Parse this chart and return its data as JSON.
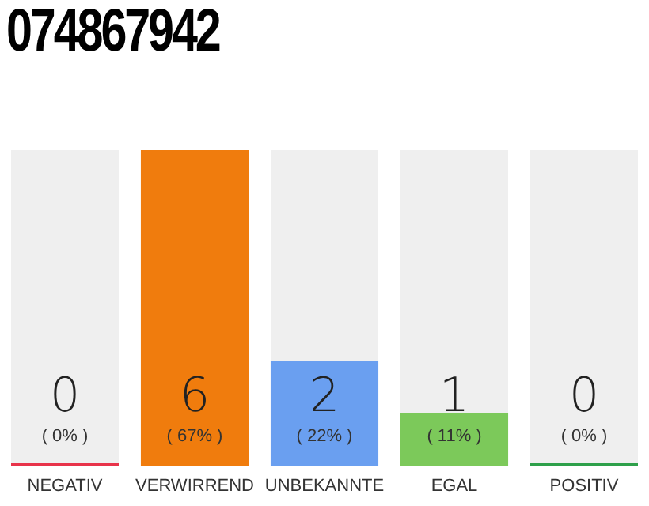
{
  "chart_data": {
    "type": "bar",
    "title": "074867942",
    "categories": [
      "NEGATIV",
      "VERWIRREND",
      "UNBEKANNTE",
      "EGAL",
      "POSITIV"
    ],
    "values": [
      0,
      6,
      2,
      1,
      0
    ],
    "colors": [
      "#e8334a",
      "#f07c0d",
      "#6a9ff0",
      "#7cc95a",
      "#2ea04a"
    ],
    "value_labels": [
      "0",
      "6",
      "2",
      "1",
      "0"
    ],
    "annotations": [
      "( 0% )",
      "( 67% )",
      "( 22% )",
      "( 11% )",
      "( 0% )"
    ],
    "tick_labels": "x",
    "grid": false,
    "legend": false
  }
}
